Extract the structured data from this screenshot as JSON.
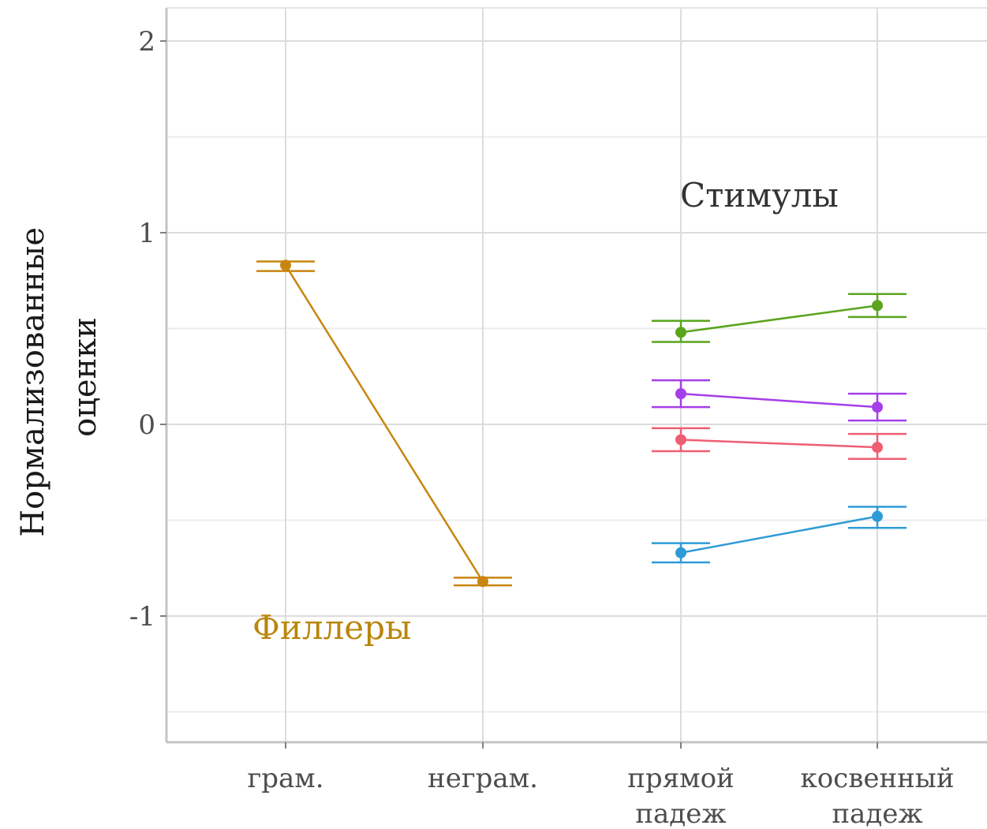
{
  "chart_data": {
    "type": "line",
    "ylabel_lines": [
      "Нормализованные",
      "оценки"
    ],
    "ylim": [
      -1.65,
      2.18
    ],
    "yticks": [
      -1,
      0,
      1,
      2
    ],
    "yticks_labels": [
      "-1",
      "0",
      "1",
      "2"
    ],
    "y_minor_gridlines": [
      -1.5,
      -0.5,
      0.5,
      1.5
    ],
    "grid": true,
    "categories": [
      {
        "lines": [
          "грам."
        ]
      },
      {
        "lines": [
          "неграм."
        ]
      },
      {
        "lines": [
          "прямой",
          "падеж"
        ]
      },
      {
        "lines": [
          "косвенный",
          "падеж"
        ]
      }
    ],
    "annotations": [
      {
        "text": "Филлеры",
        "color": "#b8860b"
      },
      {
        "text": "Стимулы",
        "color": "#333333"
      }
    ],
    "series": [
      {
        "color": "#c8850f",
        "x": [
          0,
          1
        ],
        "y": [
          0.83,
          -0.82
        ],
        "err_low": [
          0.8,
          -0.84
        ],
        "err_high": [
          0.85,
          -0.8
        ]
      },
      {
        "color": "#5aa51c",
        "x": [
          2,
          3
        ],
        "y": [
          0.48,
          0.62
        ],
        "err_low": [
          0.43,
          0.56
        ],
        "err_high": [
          0.54,
          0.68
        ]
      },
      {
        "color": "#a53ee8",
        "x": [
          2,
          3
        ],
        "y": [
          0.16,
          0.09
        ],
        "err_low": [
          0.09,
          0.02
        ],
        "err_high": [
          0.23,
          0.16
        ]
      },
      {
        "color": "#ee5e73",
        "x": [
          2,
          3
        ],
        "y": [
          -0.08,
          -0.12
        ],
        "err_low": [
          -0.14,
          -0.18
        ],
        "err_high": [
          -0.02,
          -0.05
        ]
      },
      {
        "color": "#2e9bd6",
        "x": [
          2,
          3
        ],
        "y": [
          -0.67,
          -0.48
        ],
        "err_low": [
          -0.72,
          -0.54
        ],
        "err_high": [
          -0.62,
          -0.43
        ]
      }
    ]
  }
}
